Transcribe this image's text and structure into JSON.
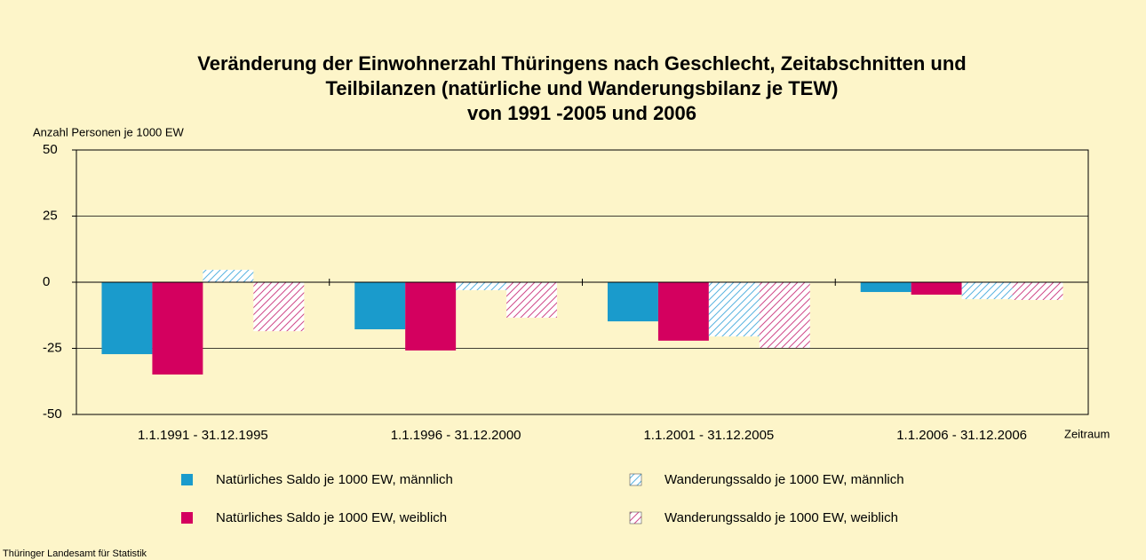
{
  "chart_data": {
    "type": "bar",
    "title": [
      "Veränderung der Einwohnerzahl Thüringens nach Geschlecht, Zeitabschnitten und",
      "Teilbilanzen (natürliche und Wanderungsbilanz je TEW)",
      "von 1991 -2005 und 2006"
    ],
    "y_label": "Anzahl Personen je 1000 EW",
    "x_label": "Zeitraum",
    "source": "Thüringer Landesamt für Statistik",
    "categories": [
      "1.1.1991 - 31.12.1995",
      "1.1.1996 - 31.12.2000",
      "1.1.2001 - 31.12.2005",
      "1.1.2006 - 31.12.2006"
    ],
    "series": [
      {
        "name": "Natürliches Saldo je 1000 EW, männlich",
        "color": "#1a9bcc",
        "hatch": false,
        "values": [
          -27.2,
          -17.8,
          -14.8,
          -3.7
        ]
      },
      {
        "name": "Natürliches Saldo je 1000 EW, weiblich",
        "color": "#d4005f",
        "hatch": false,
        "values": [
          -34.9,
          -25.8,
          -22.1,
          -4.7
        ]
      },
      {
        "name": "Wanderungssaldo je 1000 EW, männlich",
        "color": "#5ab4e0",
        "hatch": true,
        "values": [
          4.7,
          -3,
          -20.5,
          -6.4
        ]
      },
      {
        "name": "Wanderungssaldo je 1000 EW, weiblich",
        "color": "#d04a8a",
        "hatch": true,
        "values": [
          -18.5,
          -13.4,
          -24.8,
          -6.7
        ]
      }
    ],
    "ylim": [
      -50,
      50
    ],
    "yticks": [
      -50,
      -25,
      0,
      25,
      50
    ],
    "grid": true
  }
}
